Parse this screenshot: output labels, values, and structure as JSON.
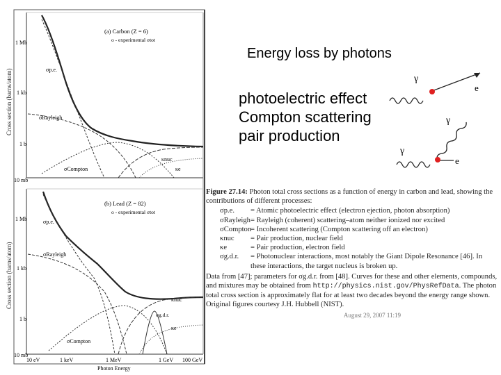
{
  "slide": {
    "title": "Energy loss by photons",
    "bullets": [
      "photoelectric effect",
      "Compton scattering",
      "pair production"
    ]
  },
  "diagram": {
    "gamma": "γ",
    "electron": "e",
    "dot_color": "#e02020"
  },
  "figure": {
    "y_axis_label": "Cross section (barns/atom)",
    "x_axis_label": "Photon Energy",
    "x_ticks": [
      "10 eV",
      "1 keV",
      "1 MeV",
      "1 GeV",
      "100 GeV"
    ],
    "panel_a": {
      "title": "(a) Carbon (Z = 6)",
      "legend": "o - experimental σtot",
      "y_ticks": [
        "1 Mb",
        "1 kb",
        "1 b",
        "10 mb"
      ],
      "labels": {
        "pe": "σp.e.",
        "rayleigh": "σRayleigh",
        "compton": "σCompton",
        "knuc": "κnuc",
        "ke": "κe"
      }
    },
    "panel_b": {
      "title": "(b) Lead (Z = 82)",
      "legend": "o - experimental σtot",
      "y_ticks": [
        "1 Mb",
        "1 kb",
        "1 b",
        "10 mb"
      ],
      "labels": {
        "pe": "σp.e.",
        "rayleigh": "σRayleigh",
        "compton": "σCompton",
        "knuc": "κnuc",
        "ke": "κe",
        "gdr": "σg.d.r."
      }
    }
  },
  "caption": {
    "label": "Figure 27.14:",
    "text": " Photon total cross sections as a function of energy in carbon and lead, showing the contributions of different processes:",
    "items": [
      {
        "sym": "σp.e.",
        "desc": "= Atomic photoelectric effect (electron ejection, photon absorption)"
      },
      {
        "sym": "σRayleigh",
        "desc": "= Rayleigh (coherent) scattering–atom neither ionized nor excited"
      },
      {
        "sym": "σCompton",
        "desc": "= Incoherent scattering (Compton scattering off an electron)"
      },
      {
        "sym": "κnuc",
        "desc": "= Pair production, nuclear field"
      },
      {
        "sym": "κe",
        "desc": "= Pair production, electron field"
      },
      {
        "sym": "σg.d.r.",
        "desc": "= Photonuclear interactions, most notably the Giant Dipole Resonance [46]. In these interactions, the target nucleus is broken up."
      }
    ],
    "source_1": "Data from [47]; parameters for σg.d.r. from [48]. Curves for these and other elements, compounds, and mixtures may be obtained from ",
    "url": "http://physics.nist.gov/PhysRefData",
    "source_2": ". The photon total cross section is approximately flat for at least two decades beyond the energy range shown. Original figures courtesy J.H. Hubbell (NIST).",
    "stamp": "August 29, 2007   11:19"
  }
}
